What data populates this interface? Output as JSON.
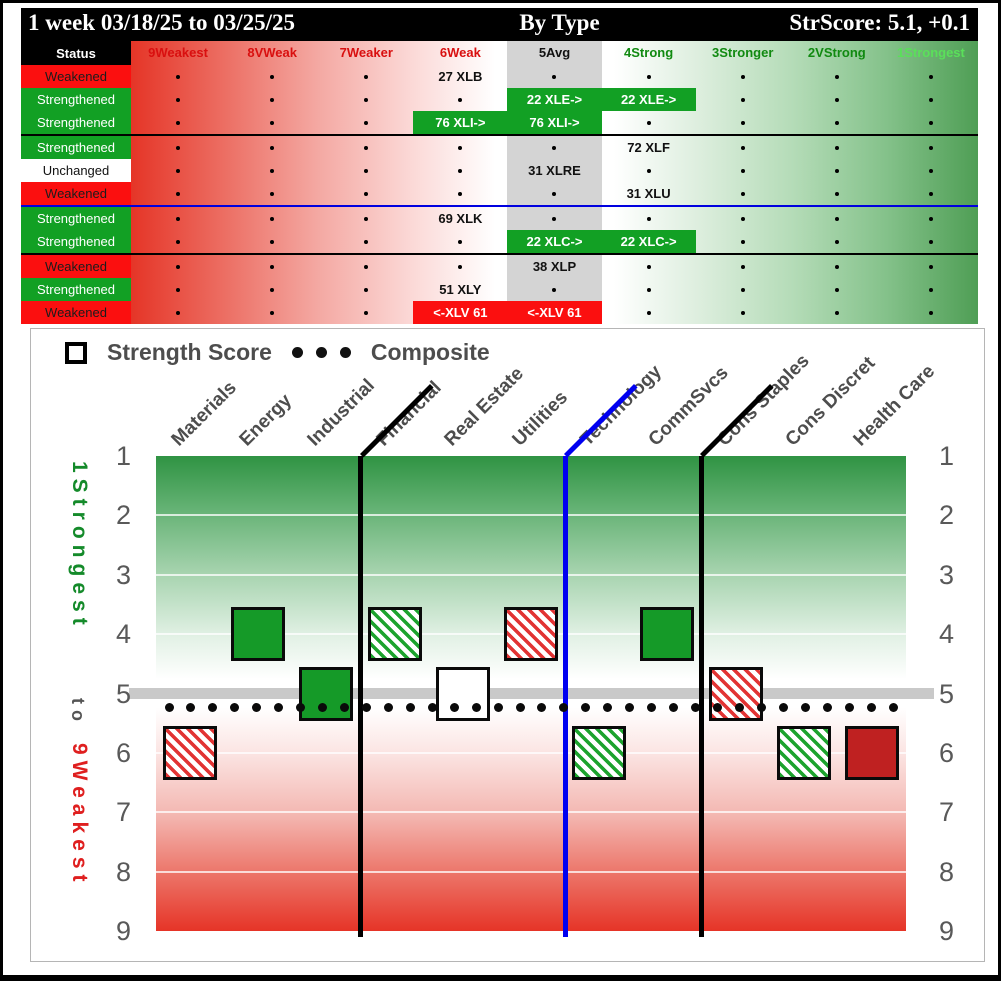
{
  "header": {
    "period": "1 week 03/18/25 to 03/25/25",
    "view": "By Type",
    "score": "StrScore: 5.1, +0.1"
  },
  "table": {
    "status_header": "Status",
    "columns": [
      {
        "label": "9Weakest",
        "color": "#d90f0f"
      },
      {
        "label": "8VWeak",
        "color": "#d90f0f"
      },
      {
        "label": "7Weaker",
        "color": "#d90f0f"
      },
      {
        "label": "6Weak",
        "color": "#d90f0f"
      },
      {
        "label": "5Avg",
        "color": "#111111"
      },
      {
        "label": "4Strong",
        "color": "#118a11"
      },
      {
        "label": "3Stronger",
        "color": "#118a11"
      },
      {
        "label": "2VStrong",
        "color": "#118a11"
      },
      {
        "label": "1Strongest",
        "color": "#5ae05a"
      }
    ],
    "rows": [
      {
        "status": "Weakened",
        "tone": "red",
        "cells": [
          {
            "col": 3,
            "text": "27 XLB",
            "style": "plain"
          }
        ],
        "sep_after": null
      },
      {
        "status": "Strengthened",
        "tone": "green",
        "cells": [
          {
            "col": 4,
            "text": "22 XLE->",
            "style": "green"
          },
          {
            "col": 5,
            "text": "22 XLE->",
            "style": "green"
          }
        ],
        "sep_after": null
      },
      {
        "status": "Strengthened",
        "tone": "green",
        "cells": [
          {
            "col": 3,
            "text": "76 XLI->",
            "style": "green"
          },
          {
            "col": 4,
            "text": "76 XLI->",
            "style": "green"
          }
        ],
        "sep_after": "black"
      },
      {
        "status": "Strengthened",
        "tone": "green",
        "cells": [
          {
            "col": 5,
            "text": "72 XLF",
            "style": "plain"
          }
        ],
        "sep_after": null
      },
      {
        "status": "Unchanged",
        "tone": "white",
        "cells": [
          {
            "col": 4,
            "text": "31 XLRE",
            "style": "plain"
          }
        ],
        "sep_after": null
      },
      {
        "status": "Weakened",
        "tone": "red",
        "cells": [
          {
            "col": 5,
            "text": "31 XLU",
            "style": "plain"
          }
        ],
        "sep_after": "blue"
      },
      {
        "status": "Strengthened",
        "tone": "green",
        "cells": [
          {
            "col": 3,
            "text": "69 XLK",
            "style": "plain"
          }
        ],
        "sep_after": null
      },
      {
        "status": "Strengthened",
        "tone": "green",
        "cells": [
          {
            "col": 4,
            "text": "22 XLC->",
            "style": "green"
          },
          {
            "col": 5,
            "text": "22 XLC->",
            "style": "green"
          }
        ],
        "sep_after": "black"
      },
      {
        "status": "Weakened",
        "tone": "red",
        "cells": [
          {
            "col": 4,
            "text": "38 XLP",
            "style": "plain"
          }
        ],
        "sep_after": null
      },
      {
        "status": "Strengthened",
        "tone": "green",
        "cells": [
          {
            "col": 3,
            "text": "51 XLY",
            "style": "plain"
          }
        ],
        "sep_after": null
      },
      {
        "status": "Weakened",
        "tone": "red",
        "cells": [
          {
            "col": 3,
            "text": "<-XLV 61",
            "style": "red"
          },
          {
            "col": 4,
            "text": "<-XLV 61",
            "style": "red"
          }
        ],
        "sep_after": null
      }
    ]
  },
  "chart_data": {
    "type": "scatter",
    "legend": {
      "score_label": "Strength Score",
      "composite_label": "Composite"
    },
    "categories": [
      "Materials",
      "Energy",
      "Industrial",
      "Financial",
      "Real Estate",
      "Utilities",
      "Technology",
      "CommSvcs",
      "Cons Staples",
      "Cons Discret",
      "Health Care"
    ],
    "series": [
      {
        "name": "Strength Score",
        "values": [
          6,
          4,
          5,
          4,
          5,
          4,
          6,
          4,
          5,
          6,
          6
        ],
        "styles": [
          "red-hatch",
          "green-solid",
          "green-solid",
          "green-hatch",
          "white",
          "red-hatch",
          "green-hatch",
          "green-solid",
          "red-hatch",
          "green-hatch",
          "red-solid"
        ]
      },
      {
        "name": "Composite",
        "value": 5.1
      }
    ],
    "tickers": [
      "XLB",
      "XLE",
      "XLI",
      "XLF",
      "XLRE",
      "XLU",
      "XLK",
      "XLC",
      "XLP",
      "XLY",
      "XLV"
    ],
    "ylim": [
      1,
      9
    ],
    "yticks": [
      1,
      2,
      3,
      4,
      5,
      6,
      7,
      8,
      9
    ],
    "axis_label_top": "1Strongest",
    "axis_label_mid": "to",
    "axis_label_bottom": "9Weakest",
    "separators": [
      {
        "after_index": 2,
        "color": "black"
      },
      {
        "after_index": 5,
        "color": "blue"
      },
      {
        "after_index": 7,
        "color": "black"
      }
    ],
    "colors": {
      "green_solid": "#159a28",
      "red_solid": "#bf2121",
      "hatch_green": "#1da32e",
      "hatch_red": "#e23434",
      "composite_dot": "#0a0a0a",
      "avg_band": "#c9c9c9"
    }
  }
}
